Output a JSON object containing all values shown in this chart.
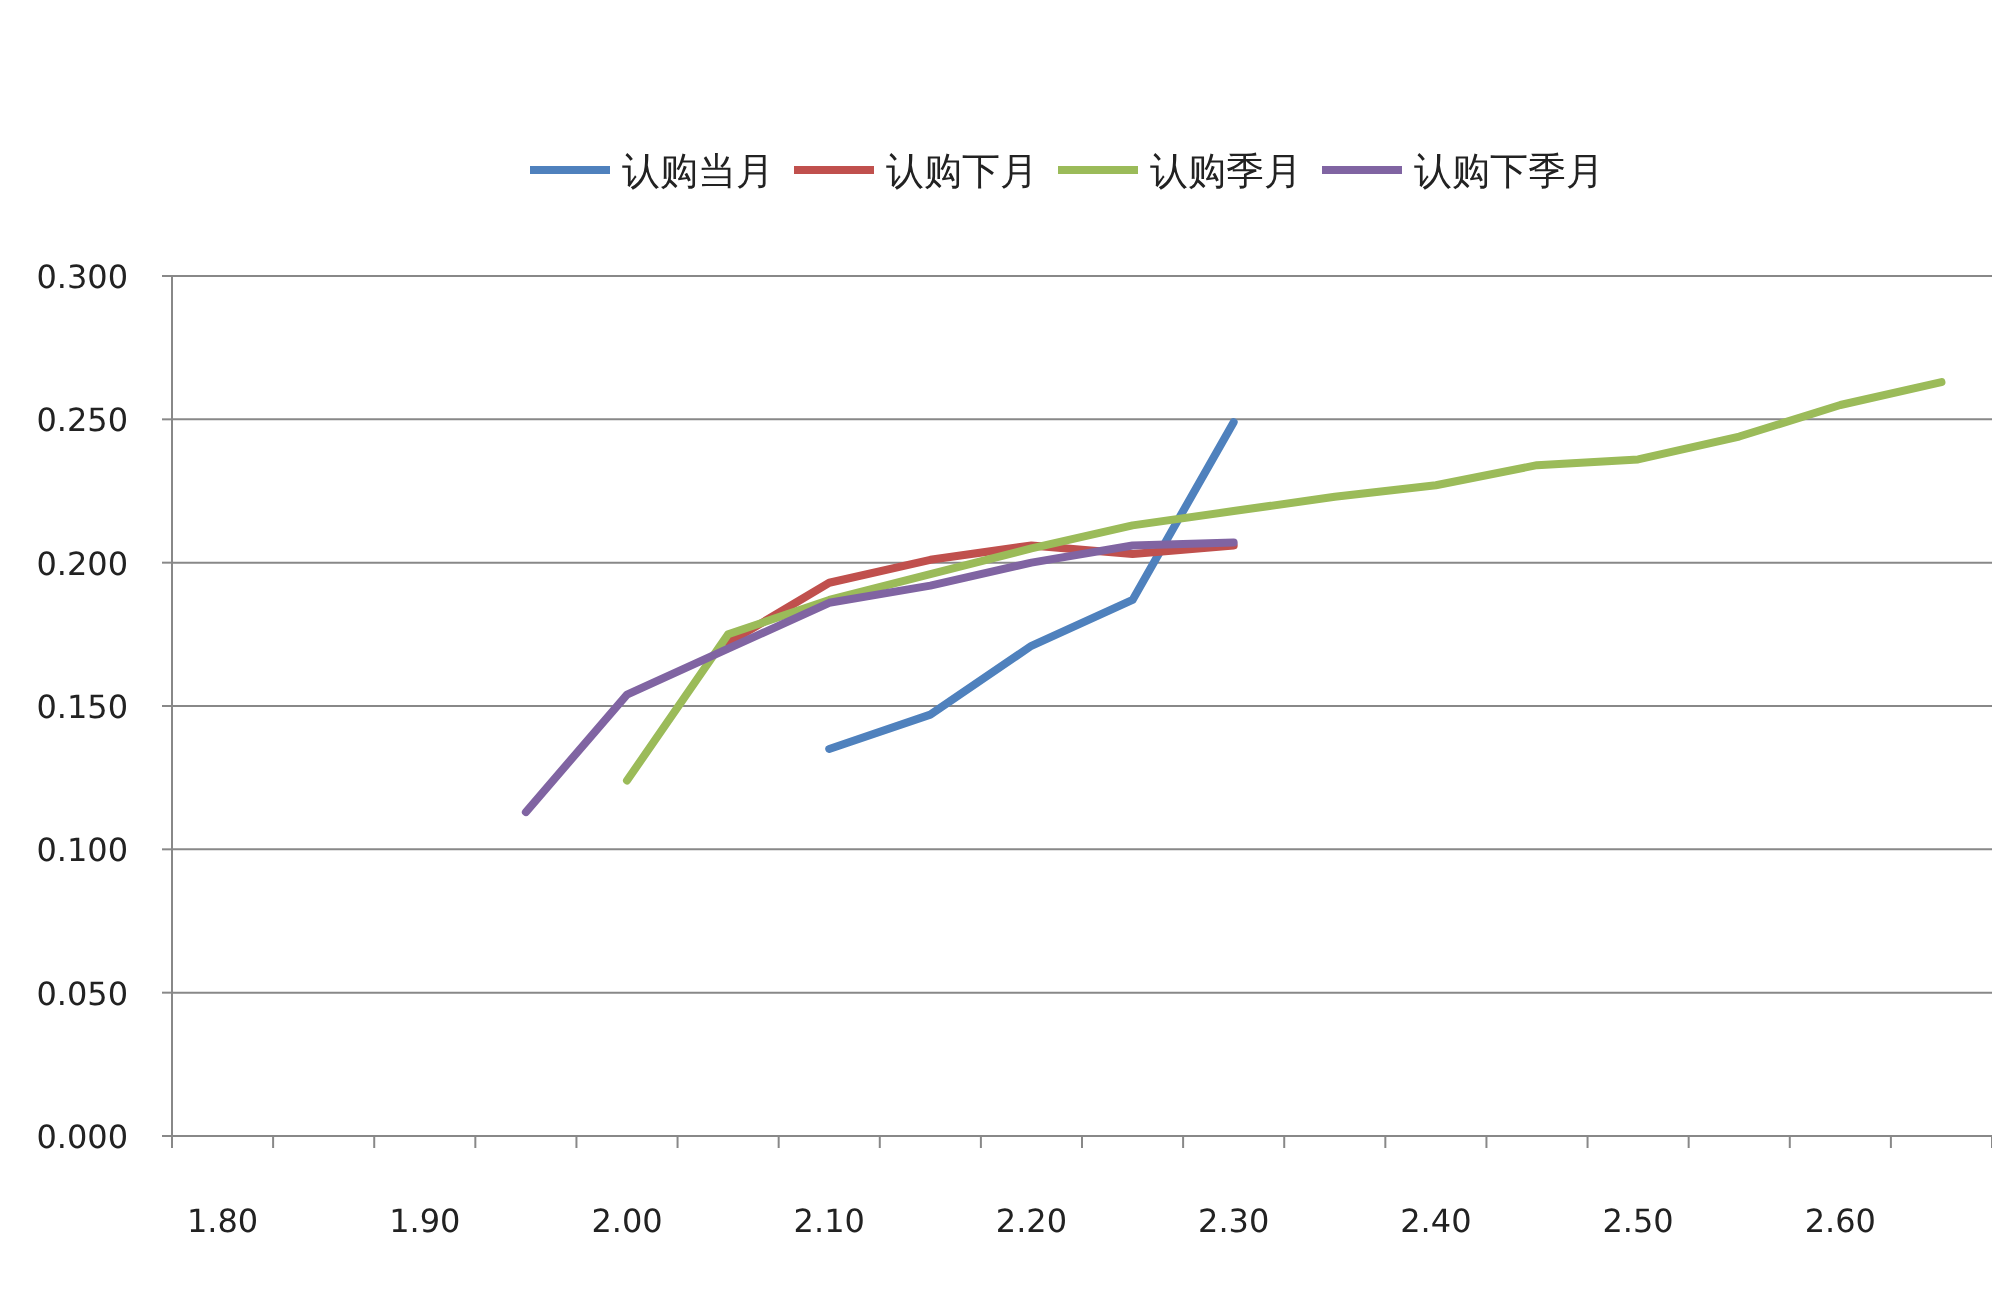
{
  "chart_data": {
    "type": "line",
    "categories": [
      "1.80",
      null,
      "1.90",
      null,
      "2.00",
      null,
      "2.10",
      null,
      "2.20",
      null,
      "2.30",
      null,
      "2.40",
      null,
      "2.50",
      null,
      "2.60",
      null
    ],
    "series": [
      {
        "name": "认购当月",
        "color": "#4f81bd",
        "values": [
          null,
          null,
          null,
          null,
          null,
          null,
          0.135,
          0.147,
          0.171,
          0.187,
          0.249,
          null,
          null,
          null,
          null,
          null,
          null,
          null
        ]
      },
      {
        "name": "认购下月",
        "color": "#c0504d",
        "values": [
          null,
          null,
          null,
          null,
          null,
          0.172,
          0.193,
          0.201,
          0.206,
          0.203,
          0.206,
          null,
          null,
          null,
          null,
          null,
          null,
          null
        ]
      },
      {
        "name": "认购季月",
        "color": "#9bbb59",
        "values": [
          null,
          null,
          null,
          null,
          0.124,
          0.175,
          0.187,
          0.196,
          0.205,
          0.213,
          0.218,
          0.223,
          0.227,
          0.234,
          0.236,
          0.244,
          0.255,
          0.263
        ]
      },
      {
        "name": "认购下季月",
        "color": "#8064a2",
        "values": [
          null,
          null,
          null,
          0.113,
          0.154,
          0.17,
          0.186,
          0.192,
          0.2,
          0.206,
          0.207,
          null,
          null,
          null,
          null,
          null,
          null,
          null
        ]
      }
    ],
    "ylim": [
      0,
      0.3
    ],
    "yticks": [
      {
        "value": 0,
        "label": "0.000"
      },
      {
        "value": 0.05,
        "label": "0.050"
      },
      {
        "value": 0.1,
        "label": "0.100"
      },
      {
        "value": 0.15,
        "label": "0.150"
      },
      {
        "value": 0.2,
        "label": "0.200"
      },
      {
        "value": 0.25,
        "label": "0.250"
      },
      {
        "value": 0.3,
        "label": "0.300"
      }
    ],
    "grid": "y",
    "legend": "top",
    "marker": "none",
    "line_style": "solid"
  }
}
